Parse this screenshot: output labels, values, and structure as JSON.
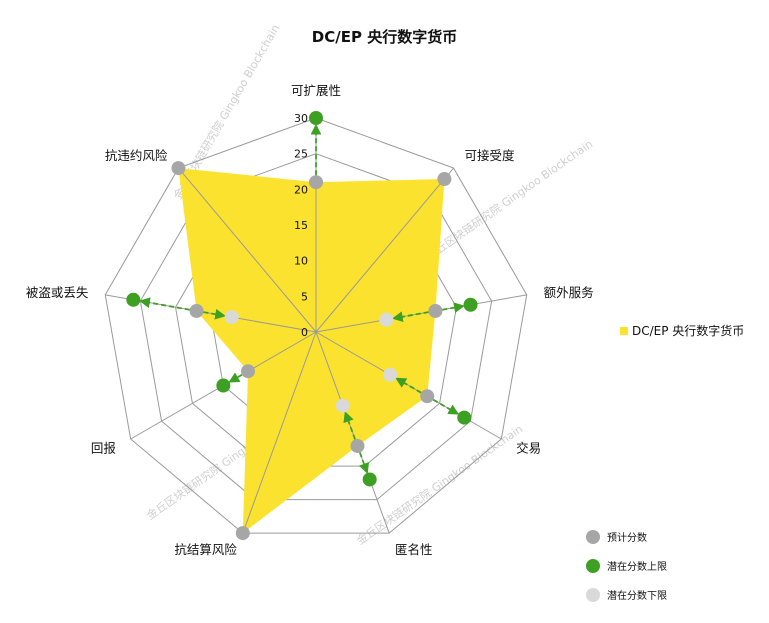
{
  "chart_data": {
    "type": "radar",
    "title": "DC/EP 央行数字货币",
    "axes": [
      "可扩展性",
      "可接受度",
      "额外服务",
      "交易",
      "匿名性",
      "抗结算风险",
      "回报",
      "被盗或丢失",
      "抗违约风险"
    ],
    "rlim": [
      0,
      30
    ],
    "ticks": [
      0,
      5,
      10,
      15,
      20,
      25,
      30
    ],
    "ring_count": 6,
    "series": [
      {
        "name": "DC/EP 央行数字货币",
        "kind": "area",
        "color": "#FBE22E",
        "values": [
          21,
          28,
          17,
          18,
          17,
          30,
          11,
          17,
          30
        ]
      },
      {
        "name": "预计分数",
        "kind": "points",
        "color": "#A6A6A6",
        "values": [
          21,
          28,
          17,
          18,
          17,
          30,
          11,
          17,
          30
        ]
      },
      {
        "name": "潜在分数上限",
        "kind": "points",
        "color": "#3DA023",
        "values": [
          30,
          null,
          22,
          24,
          22,
          null,
          15,
          26,
          null
        ]
      },
      {
        "name": "潜在分数下限",
        "kind": "points",
        "color": "#D9D9D9",
        "values": [
          null,
          null,
          10,
          12,
          11,
          null,
          null,
          12,
          null
        ]
      }
    ],
    "legend": [
      {
        "label": "DC/EP 央行数字货币",
        "color": "#FBE22E",
        "shape": "square"
      },
      {
        "label": "预计分数",
        "color": "#A6A6A6",
        "shape": "circle"
      },
      {
        "label": "潜在分数上限",
        "color": "#3DA023",
        "shape": "circle"
      },
      {
        "label": "潜在分数下限",
        "color": "#D9D9D9",
        "shape": "circle"
      }
    ],
    "arrow_color": "#3DA023",
    "grid": true
  },
  "watermark": "金丘区块链研究院 Gingkoo Blockchain"
}
